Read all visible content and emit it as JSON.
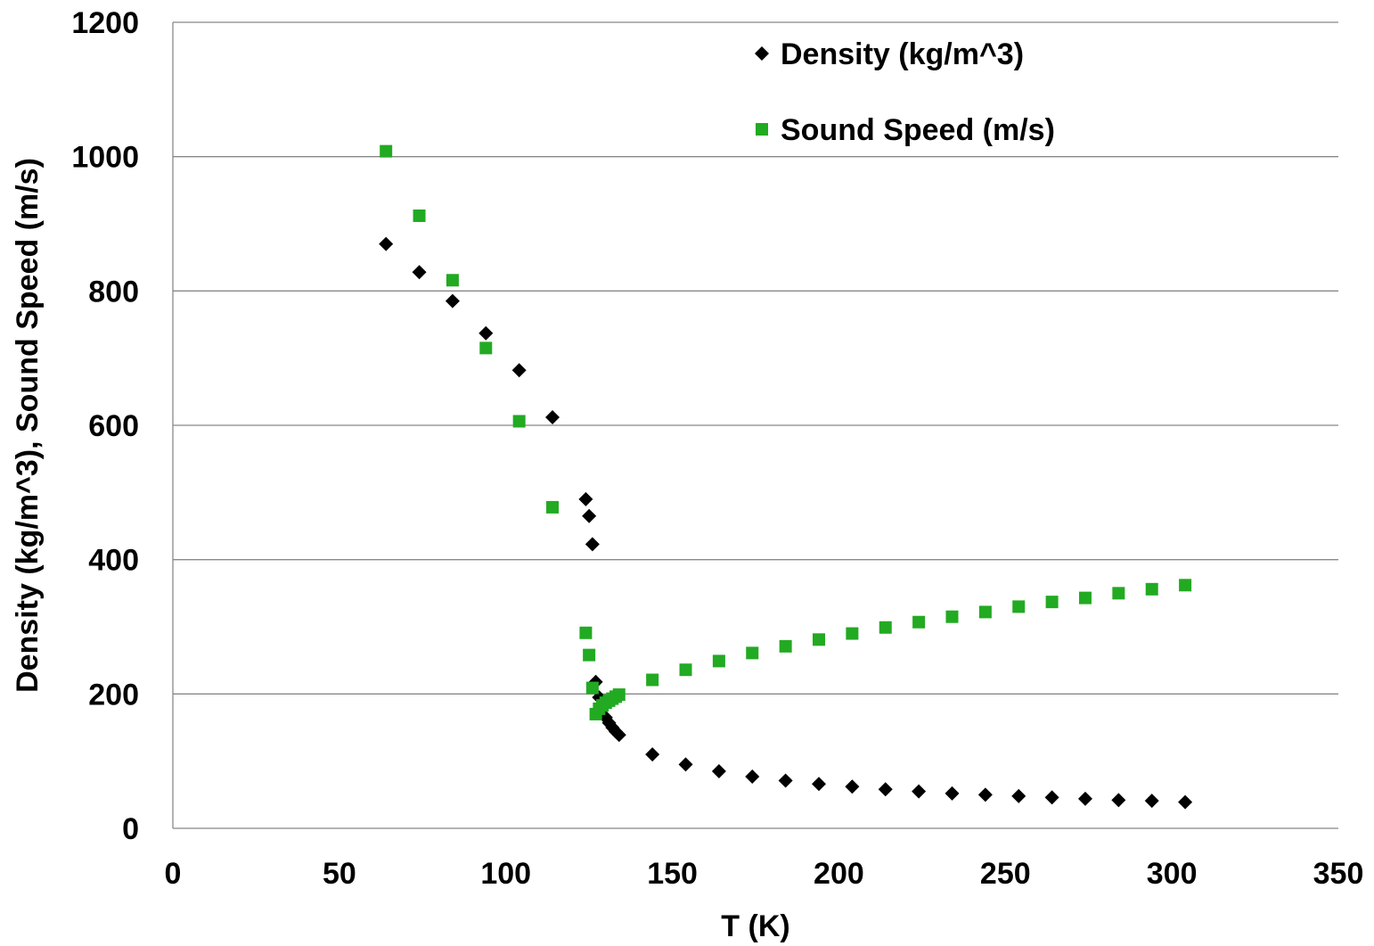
{
  "chart_data": {
    "type": "scatter",
    "title": "",
    "xlabel": "T (K)",
    "ylabel": "Density (kg/m^3), Sound Speed (m/s)",
    "xlim": [
      0,
      350
    ],
    "ylim": [
      0,
      1200
    ],
    "xticks": [
      0,
      50,
      100,
      150,
      200,
      250,
      300,
      350
    ],
    "yticks": [
      0,
      200,
      400,
      600,
      800,
      1000,
      1200
    ],
    "grid": "horizontal",
    "legend_position": "top-right",
    "series": [
      {
        "name": "Density (kg/m^3)",
        "marker": "diamond",
        "color": "#000000",
        "points": [
          [
            64,
            870
          ],
          [
            74,
            828
          ],
          [
            84,
            785
          ],
          [
            94,
            737
          ],
          [
            104,
            682
          ],
          [
            114,
            612
          ],
          [
            124,
            490
          ],
          [
            125,
            465
          ],
          [
            126,
            423
          ],
          [
            127,
            218
          ],
          [
            128,
            195
          ],
          [
            129,
            180
          ],
          [
            130,
            165
          ],
          [
            131,
            157
          ],
          [
            132,
            150
          ],
          [
            133,
            144
          ],
          [
            134,
            139
          ],
          [
            144,
            110
          ],
          [
            154,
            95
          ],
          [
            164,
            85
          ],
          [
            174,
            77
          ],
          [
            184,
            71
          ],
          [
            194,
            66
          ],
          [
            204,
            62
          ],
          [
            214,
            58
          ],
          [
            224,
            55
          ],
          [
            234,
            52
          ],
          [
            244,
            50
          ],
          [
            254,
            48
          ],
          [
            264,
            46
          ],
          [
            274,
            44
          ],
          [
            284,
            42
          ],
          [
            294,
            41
          ],
          [
            304,
            39
          ]
        ]
      },
      {
        "name": "Sound Speed (m/s)",
        "marker": "square",
        "color": "#22aa22",
        "points": [
          [
            64,
            1008
          ],
          [
            74,
            912
          ],
          [
            84,
            816
          ],
          [
            94,
            715
          ],
          [
            104,
            606
          ],
          [
            114,
            478
          ],
          [
            124,
            291
          ],
          [
            125,
            258
          ],
          [
            126,
            209
          ],
          [
            127,
            170
          ],
          [
            128,
            178
          ],
          [
            129,
            183
          ],
          [
            130,
            187
          ],
          [
            131,
            190
          ],
          [
            132,
            193
          ],
          [
            133,
            196
          ],
          [
            134,
            199
          ],
          [
            144,
            221
          ],
          [
            154,
            236
          ],
          [
            164,
            249
          ],
          [
            174,
            261
          ],
          [
            184,
            271
          ],
          [
            194,
            281
          ],
          [
            204,
            290
          ],
          [
            214,
            299
          ],
          [
            224,
            307
          ],
          [
            234,
            315
          ],
          [
            244,
            322
          ],
          [
            254,
            330
          ],
          [
            264,
            337
          ],
          [
            274,
            343
          ],
          [
            284,
            350
          ],
          [
            294,
            356
          ],
          [
            304,
            362
          ]
        ]
      }
    ]
  }
}
